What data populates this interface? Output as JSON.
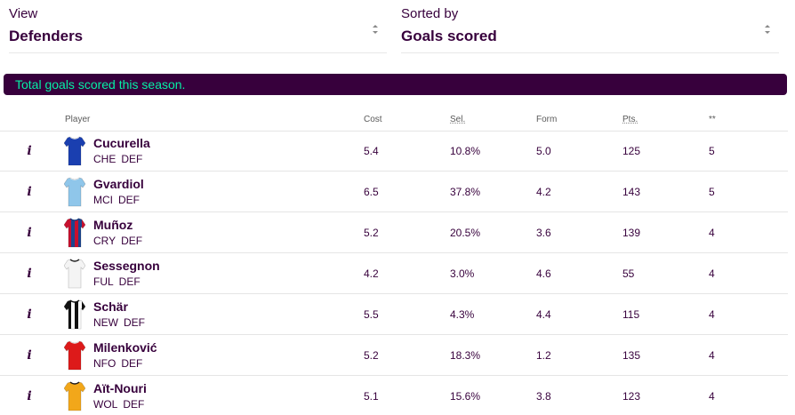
{
  "view_select": {
    "label": "View",
    "value": "Defenders"
  },
  "sort_select": {
    "label": "Sorted by",
    "value": "Goals scored"
  },
  "banner": {
    "text": "Total goals scored this season."
  },
  "table": {
    "headers": {
      "player": "Player",
      "cost": "Cost",
      "sel": "Sel.",
      "form": "Form",
      "pts": "Pts.",
      "stat": "**"
    },
    "info_label": "i",
    "rows": [
      {
        "name": "Cucurella",
        "team": "CHE",
        "pos": "DEF",
        "cost": "5.4",
        "sel": "10.8%",
        "form": "5.0",
        "pts": "125",
        "stat": "5",
        "shirt_icon": "chelsea-shirt",
        "shirt_colors": [
          "#1a3fb0",
          "#1a3fb0",
          "#ffffff"
        ]
      },
      {
        "name": "Gvardiol",
        "team": "MCI",
        "pos": "DEF",
        "cost": "6.5",
        "sel": "37.8%",
        "form": "4.2",
        "pts": "143",
        "stat": "5",
        "shirt_icon": "man-city-shirt",
        "shirt_colors": [
          "#8fc6ea",
          "#8fc6ea",
          "#ffffff"
        ]
      },
      {
        "name": "Muñoz",
        "team": "CRY",
        "pos": "DEF",
        "cost": "5.2",
        "sel": "20.5%",
        "form": "3.6",
        "pts": "139",
        "stat": "4",
        "shirt_icon": "crystal-palace-shirt",
        "shirt_colors": [
          "#c8102e",
          "#1b458f",
          "#1b458f"
        ]
      },
      {
        "name": "Sessegnon",
        "team": "FUL",
        "pos": "DEF",
        "cost": "4.2",
        "sel": "3.0%",
        "form": "4.6",
        "pts": "55",
        "stat": "4",
        "shirt_icon": "fulham-shirt",
        "shirt_colors": [
          "#f4f4f4",
          "#f4f4f4",
          "#222222"
        ]
      },
      {
        "name": "Schär",
        "team": "NEW",
        "pos": "DEF",
        "cost": "5.5",
        "sel": "4.3%",
        "form": "4.4",
        "pts": "115",
        "stat": "4",
        "shirt_icon": "newcastle-shirt",
        "shirt_colors": [
          "#111111",
          "#ffffff",
          "#111111"
        ]
      },
      {
        "name": "Milenković",
        "team": "NFO",
        "pos": "DEF",
        "cost": "5.2",
        "sel": "18.3%",
        "form": "1.2",
        "pts": "135",
        "stat": "4",
        "shirt_icon": "nottingham-forest-shirt",
        "shirt_colors": [
          "#dd1a1a",
          "#dd1a1a",
          "#ffffff"
        ]
      },
      {
        "name": "Aït-Nouri",
        "team": "WOL",
        "pos": "DEF",
        "cost": "5.1",
        "sel": "15.6%",
        "form": "3.8",
        "pts": "123",
        "stat": "4",
        "shirt_icon": "wolves-shirt",
        "shirt_colors": [
          "#f2a71a",
          "#f2a71a",
          "#231f20"
        ]
      }
    ]
  },
  "colors": {
    "brand": "#37003c",
    "accent": "#05f0a5",
    "divider": "#e5e5e5"
  }
}
